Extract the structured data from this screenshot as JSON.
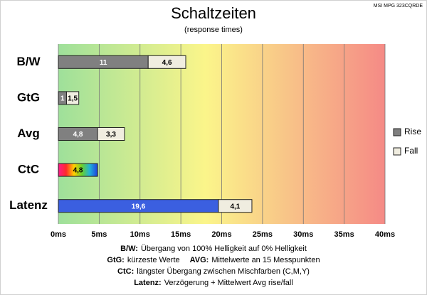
{
  "chart_data": {
    "type": "bar",
    "orientation": "horizontal",
    "stacked": true,
    "title": "Schaltzeiten",
    "subtitle": "(response times)",
    "model": "MSI MPG 323CQRDE",
    "categories": [
      "B/W",
      "GtG",
      "Avg",
      "CtC",
      "Latenz"
    ],
    "series": [
      {
        "name": "Rise",
        "color": "#808080",
        "colors": [
          "#808080",
          "#808080",
          "#808080",
          "rainbow",
          "#3b5fe0"
        ],
        "values": [
          11,
          1,
          4.8,
          4.8,
          19.6
        ],
        "value_labels": [
          "11",
          "1",
          "4,8",
          "4,8",
          "19,6"
        ]
      },
      {
        "name": "Fall",
        "color": "#f0ede0",
        "values": [
          4.6,
          1.5,
          3.3,
          null,
          4.1
        ],
        "value_labels": [
          "4,6",
          "1,5",
          "3,3",
          null,
          "4,1"
        ]
      }
    ],
    "xlim": [
      0,
      40
    ],
    "xticks": [
      {
        "value": 0,
        "label": "0ms"
      },
      {
        "value": 5,
        "label": "5ms"
      },
      {
        "value": 10,
        "label": "10ms"
      },
      {
        "value": 15,
        "label": "15ms"
      },
      {
        "value": 20,
        "label": "20ms"
      },
      {
        "value": 25,
        "label": "25ms"
      },
      {
        "value": 30,
        "label": "30ms"
      },
      {
        "value": 35,
        "label": "35ms"
      },
      {
        "value": 40,
        "label": "40ms"
      }
    ],
    "grid": true,
    "legend": "right",
    "notes": [
      [
        {
          "term": "B/W:",
          "text": "Übergang von 100% Helligkeit auf 0% Helligkeit"
        }
      ],
      [
        {
          "term": "GtG:",
          "text": "kürzeste Werte"
        },
        {
          "term": "AVG:",
          "text": "Mittelwerte an 15 Messpunkten"
        }
      ],
      [
        {
          "term": "CtC:",
          "text": "längster Übergang zwischen Mischfarben (C,M,Y)"
        }
      ],
      [
        {
          "term": "Latenz:",
          "text": "Verzögerung + Mittelwert Avg rise/fall"
        }
      ]
    ]
  }
}
